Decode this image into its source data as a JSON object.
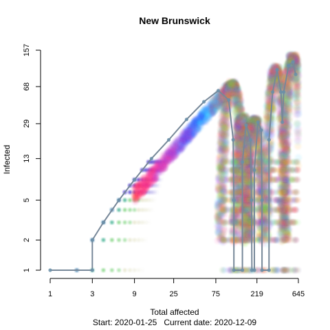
{
  "chart_data": {
    "type": "scatter",
    "title": "New Brunswick",
    "xlabel": "Total affected",
    "ylabel": "Infected",
    "x_scale": "log",
    "y_scale": "log",
    "xlim": [
      1,
      645
    ],
    "ylim": [
      1,
      157
    ],
    "x_ticks": [
      1,
      3,
      9,
      25,
      75,
      219,
      645
    ],
    "x_tick_labels": [
      "1",
      "3",
      "9",
      "25",
      "75",
      "219",
      "645"
    ],
    "y_ticks": [
      1,
      2,
      5,
      13,
      29,
      68,
      157
    ],
    "y_tick_labels": [
      "1",
      "2",
      "5",
      "13",
      "29",
      "68",
      "157"
    ],
    "grid": false,
    "caption": {
      "start_label": "Start:",
      "start_date": "2020-01-25",
      "current_label": "Current date:",
      "current_date": "2020-12-09"
    },
    "series": [
      {
        "role": "observed-trajectory",
        "color": "#778899",
        "points": [
          [
            1,
            1
          ],
          [
            3,
            1
          ],
          [
            3,
            2
          ],
          [
            4,
            3
          ],
          [
            6,
            5
          ],
          [
            9,
            8
          ],
          [
            14,
            13
          ],
          [
            22,
            20
          ],
          [
            35,
            32
          ],
          [
            55,
            48
          ],
          [
            80,
            62
          ],
          [
            105,
            50
          ],
          [
            118,
            20
          ],
          [
            120,
            5
          ],
          [
            120,
            1
          ],
          [
            150,
            1
          ],
          [
            150,
            12
          ],
          [
            165,
            28
          ],
          [
            185,
            20
          ],
          [
            190,
            5
          ],
          [
            192,
            1
          ],
          [
            205,
            1
          ],
          [
            205,
            10
          ],
          [
            225,
            30
          ],
          [
            245,
            25
          ],
          [
            250,
            5
          ],
          [
            250,
            1
          ],
          [
            300,
            1
          ],
          [
            300,
            20
          ],
          [
            330,
            60
          ],
          [
            370,
            100
          ],
          [
            410,
            60
          ],
          [
            425,
            30
          ],
          [
            440,
            60
          ],
          [
            500,
            110
          ],
          [
            560,
            120
          ],
          [
            600,
            90
          ]
        ]
      }
    ]
  }
}
